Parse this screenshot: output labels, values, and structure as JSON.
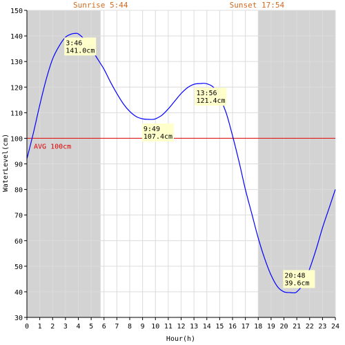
{
  "chart_data": {
    "type": "line",
    "xlabel": "Hour(h)",
    "ylabel": "WaterLevel(cm)",
    "xlim": [
      0,
      24
    ],
    "ylim": [
      30,
      150
    ],
    "x_ticks": [
      0,
      1,
      2,
      3,
      4,
      5,
      6,
      7,
      8,
      9,
      10,
      11,
      12,
      13,
      14,
      15,
      16,
      17,
      18,
      19,
      20,
      21,
      22,
      23,
      24
    ],
    "y_ticks": [
      30,
      40,
      50,
      60,
      70,
      80,
      90,
      100,
      110,
      120,
      130,
      140,
      150
    ],
    "grid": true,
    "night_shading": [
      [
        0,
        5.73
      ],
      [
        18,
        24
      ]
    ],
    "sunrise_label": "Sunrise 5:44",
    "sunset_label": "Sunset 17:54",
    "sunrise_hour": 5.73,
    "sunset_hour": 17.9,
    "average": {
      "value": 100,
      "label": "AVG 100cm"
    },
    "series": [
      {
        "x": [
          0,
          0.5,
          1,
          1.5,
          2,
          2.5,
          3,
          3.5,
          3.77,
          4,
          4.5,
          5,
          5.5,
          6,
          6.5,
          7,
          7.5,
          8,
          8.5,
          9,
          9.5,
          9.82,
          10,
          10.5,
          11,
          11.5,
          12,
          12.5,
          13,
          13.5,
          13.93,
          14.5,
          15,
          15.5,
          16,
          16.5,
          17,
          17.5,
          18,
          18.5,
          19,
          19.5,
          20,
          20.5,
          20.8,
          21,
          21.5,
          22,
          22.5,
          23,
          23.5,
          24
        ],
        "y": [
          92,
          102,
          113,
          123,
          131,
          136,
          139.5,
          140.8,
          141.0,
          140.8,
          138.5,
          135,
          131,
          127,
          122,
          117.5,
          113.5,
          110.5,
          108.5,
          107.6,
          107.4,
          107.4,
          107.6,
          109,
          111.5,
          114.5,
          117.5,
          119.8,
          121.1,
          121.4,
          121.4,
          120,
          116,
          110,
          101,
          91,
          80,
          70.5,
          61,
          53,
          46.5,
          42,
          40,
          39.7,
          39.6,
          40,
          43,
          49,
          56.5,
          65,
          72.5,
          80
        ]
      }
    ],
    "annotations": [
      {
        "time": "3:46",
        "value": "141.0cm",
        "x": 3.77,
        "y": 141.0
      },
      {
        "time": "9:49",
        "value": "107.4cm",
        "x": 9.82,
        "y": 107.4
      },
      {
        "time": "13:56",
        "value": "121.4cm",
        "x": 13.93,
        "y": 121.4
      },
      {
        "time": "20:48",
        "value": " 39.6cm",
        "x": 20.8,
        "y": 39.6
      }
    ],
    "colors": {
      "line": "#0000ff",
      "avg": "#e00000",
      "night": "#d3d3d3",
      "grid": "#dcdcdc",
      "annotation_bg": "#ffffcc",
      "sun_label": "#d2691e"
    }
  }
}
